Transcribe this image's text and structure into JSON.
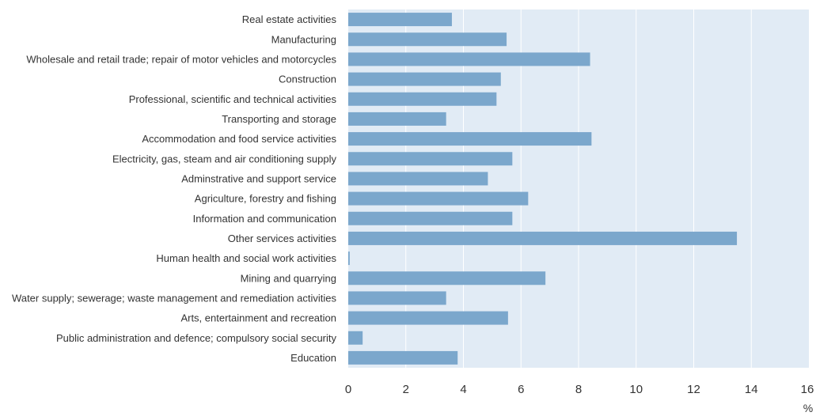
{
  "chart_data": {
    "type": "bar",
    "orientation": "horizontal",
    "categories": [
      "Real estate activities",
      "Manufacturing",
      "Wholesale and retail trade; repair of motor vehicles and motorcycles",
      "Construction",
      "Professional, scientific and technical activities",
      "Transporting and storage",
      "Accommodation and food service activities",
      "Electricity, gas, steam and air conditioning supply",
      "Adminstrative and support service",
      "Agriculture, forestry and fishing",
      "Information and communication",
      "Other services activities",
      "Human health and social work activities",
      "Mining and quarrying",
      "Water supply; sewerage; waste management and remediation activities",
      "Arts, entertainment and recreation",
      "Public administration and defence; compulsory social security",
      "Education"
    ],
    "values": [
      3.6,
      5.5,
      8.4,
      5.3,
      5.15,
      3.4,
      8.45,
      5.7,
      4.85,
      6.25,
      5.7,
      13.5,
      0.05,
      6.85,
      3.4,
      5.55,
      0.5,
      3.8
    ],
    "xlim": [
      0,
      16
    ],
    "xticks": [
      "0",
      "2",
      "4",
      "6",
      "8",
      "10",
      "12",
      "14",
      "16"
    ],
    "unit_label": "%",
    "title": "",
    "xlabel": "",
    "ylabel": "",
    "grid": true,
    "colors": {
      "bar": "#7ba7cc",
      "plot_background": "#e1ebf5",
      "grid": "#ffffff",
      "text": "#333333"
    }
  }
}
